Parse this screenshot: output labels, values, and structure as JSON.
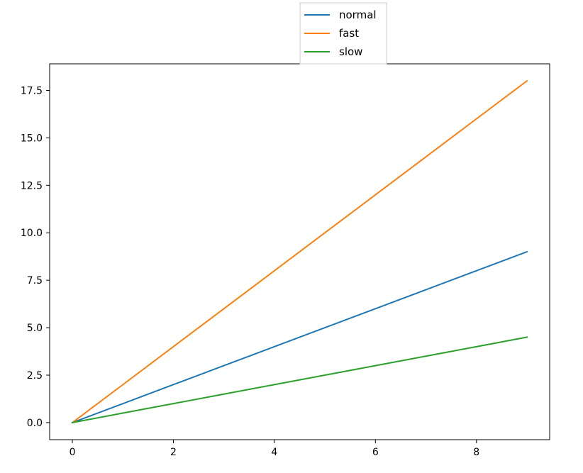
{
  "chart_data": {
    "type": "line",
    "x": [
      0,
      1,
      2,
      3,
      4,
      5,
      6,
      7,
      8,
      9
    ],
    "series": [
      {
        "name": "normal",
        "color": "#1f77b4",
        "values": [
          0,
          1,
          2,
          3,
          4,
          5,
          6,
          7,
          8,
          9
        ]
      },
      {
        "name": "fast",
        "color": "#ff7f0e",
        "values": [
          0,
          2,
          4,
          6,
          8,
          10,
          12,
          14,
          16,
          18
        ]
      },
      {
        "name": "slow",
        "color": "#2ca02c",
        "values": [
          0,
          0.5,
          1,
          1.5,
          2,
          2.5,
          3,
          3.5,
          4,
          4.5
        ]
      }
    ],
    "x_ticks": [
      "0",
      "2",
      "4",
      "6",
      "8"
    ],
    "x_tick_values": [
      0,
      2,
      4,
      6,
      8
    ],
    "y_ticks": [
      "0.0",
      "2.5",
      "5.0",
      "7.5",
      "10.0",
      "12.5",
      "15.0",
      "17.5"
    ],
    "y_tick_values": [
      0,
      2.5,
      5,
      7.5,
      10,
      12.5,
      15,
      17.5
    ],
    "xlim": [
      -0.45,
      9.45
    ],
    "ylim": [
      -0.9,
      18.9
    ],
    "grid": false,
    "legend_position": "top-center, above plot"
  }
}
